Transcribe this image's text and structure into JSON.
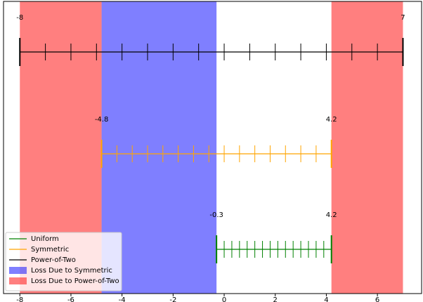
{
  "chart_data": {
    "type": "range",
    "xlim": [
      -8.64,
      7.73
    ],
    "xticks": [
      -8,
      -6,
      -4,
      -2,
      0,
      2,
      4,
      6
    ],
    "spans": [
      {
        "name": "Loss Due to Symmetric",
        "color": "#0000ff",
        "ranges": [
          [
            -4.8,
            -0.3
          ]
        ]
      },
      {
        "name": "Loss Due to Power-of-Two",
        "color": "#ff0000",
        "ranges": [
          [
            -8,
            -4.8
          ],
          [
            4.2,
            7
          ]
        ]
      }
    ],
    "series": [
      {
        "name": "Uniform",
        "color": "#008000",
        "min": -0.3,
        "max": 4.2,
        "ticks": [
          -0.3,
          0,
          0.3,
          0.6,
          0.9,
          1.2,
          1.5,
          1.8,
          2.1,
          2.4,
          2.7,
          3,
          3.3,
          3.6,
          3.9,
          4.2
        ]
      },
      {
        "name": "Symmetric",
        "color": "#ffa500",
        "min": -4.8,
        "max": 4.2,
        "ticks": [
          -4.8,
          -4.2,
          -3.6,
          -3,
          -2.4,
          -1.8,
          -1.2,
          -0.6,
          0,
          0.6,
          1.2,
          1.8,
          2.4,
          3,
          3.6,
          4.2
        ]
      },
      {
        "name": "Power-of-Two",
        "color": "#000000",
        "min": -8,
        "max": 7,
        "ticks": [
          -8,
          -7,
          -6,
          -5,
          -4,
          -3,
          -2,
          -1,
          0,
          1,
          2,
          3,
          4,
          5,
          6,
          7
        ]
      }
    ],
    "legend": "lower left"
  }
}
